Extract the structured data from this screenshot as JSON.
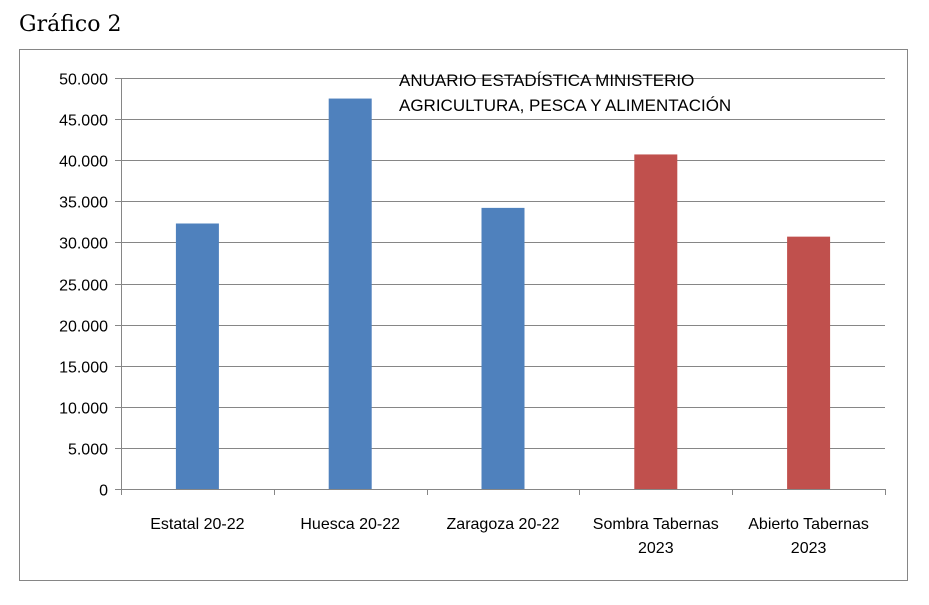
{
  "figure_label": "Gráfico 2",
  "chart_data": {
    "type": "bar",
    "categories": [
      "Estatal 20-22",
      "Huesca 20-22",
      "Zaragoza 20-22",
      "Sombra Tabernas 2023",
      "Abierto Tabernas 2023"
    ],
    "category_lines": [
      [
        "Estatal 20-22"
      ],
      [
        "Huesca 20-22"
      ],
      [
        "Zaragoza 20-22"
      ],
      [
        "Sombra Tabernas",
        "2023"
      ],
      [
        "Abierto Tabernas",
        "2023"
      ]
    ],
    "values": [
      32300,
      47500,
      34200,
      40700,
      30700
    ],
    "colors": [
      "#4f81bd",
      "#4f81bd",
      "#4f81bd",
      "#c0504d",
      "#c0504d"
    ],
    "annotation_lines": [
      "ANUARIO ESTADÍSTICA MINISTERIO",
      "AGRICULTURA, PESCA Y ALIMENTACIÓN"
    ],
    "ylim": [
      0,
      50000
    ],
    "yticks": [
      0,
      5000,
      10000,
      15000,
      20000,
      25000,
      30000,
      35000,
      40000,
      45000,
      50000
    ],
    "ytick_labels": [
      "0",
      "5.000",
      "10.000",
      "15.000",
      "20.000",
      "25.000",
      "30.000",
      "35.000",
      "40.000",
      "45.000",
      "50.000"
    ],
    "grid": true,
    "gridline_color": "#868686",
    "axis_color": "#868686",
    "border_color": "#868686",
    "text_color": "#000000"
  }
}
